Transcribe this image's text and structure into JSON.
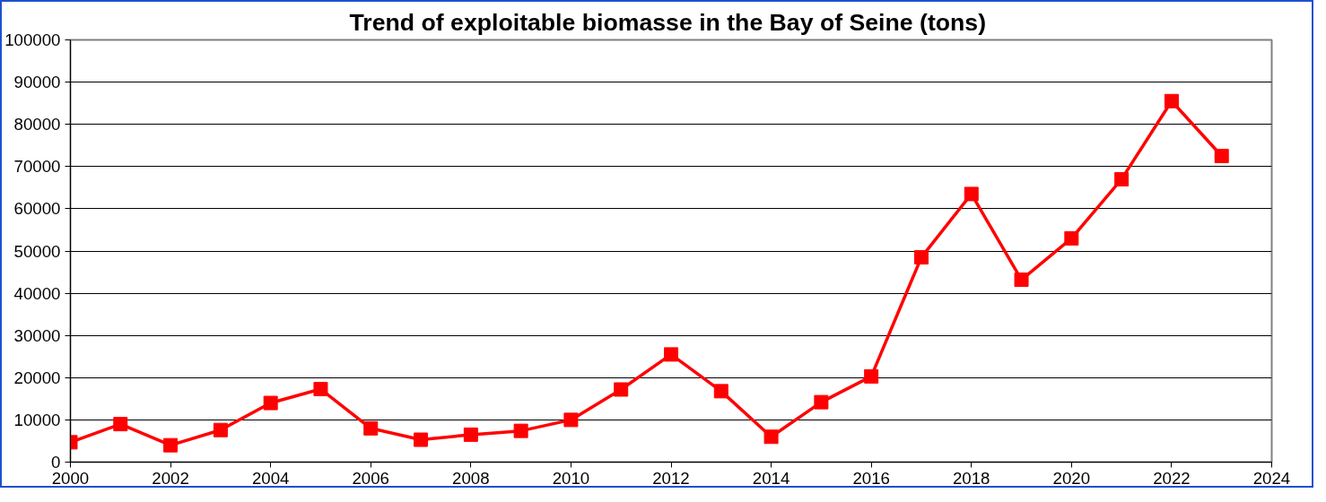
{
  "chart_data": {
    "type": "line",
    "title": "Trend of exploitable biomasse in the  Bay of Seine (tons)",
    "x": [
      2000,
      2001,
      2002,
      2003,
      2004,
      2005,
      2006,
      2007,
      2008,
      2009,
      2010,
      2011,
      2012,
      2013,
      2014,
      2015,
      2016,
      2017,
      2018,
      2019,
      2020,
      2021,
      2022,
      2023
    ],
    "series": [
      {
        "color": "#ff0000",
        "values": [
          4700,
          9000,
          4000,
          7600,
          14000,
          17300,
          8000,
          5300,
          6500,
          7400,
          10000,
          17200,
          25500,
          16800,
          6000,
          14200,
          20300,
          48500,
          63500,
          43200,
          53000,
          67000,
          85500,
          72500
        ]
      }
    ],
    "xlim": [
      2000,
      2024
    ],
    "xticks": [
      2000,
      2002,
      2004,
      2006,
      2008,
      2010,
      2012,
      2014,
      2016,
      2018,
      2020,
      2022,
      2024
    ],
    "ylim": [
      0,
      100000
    ],
    "yticks": [
      0,
      10000,
      20000,
      30000,
      40000,
      50000,
      60000,
      70000,
      80000,
      90000,
      100000
    ],
    "grid": "y",
    "marker": "square",
    "line_style": "solid"
  }
}
